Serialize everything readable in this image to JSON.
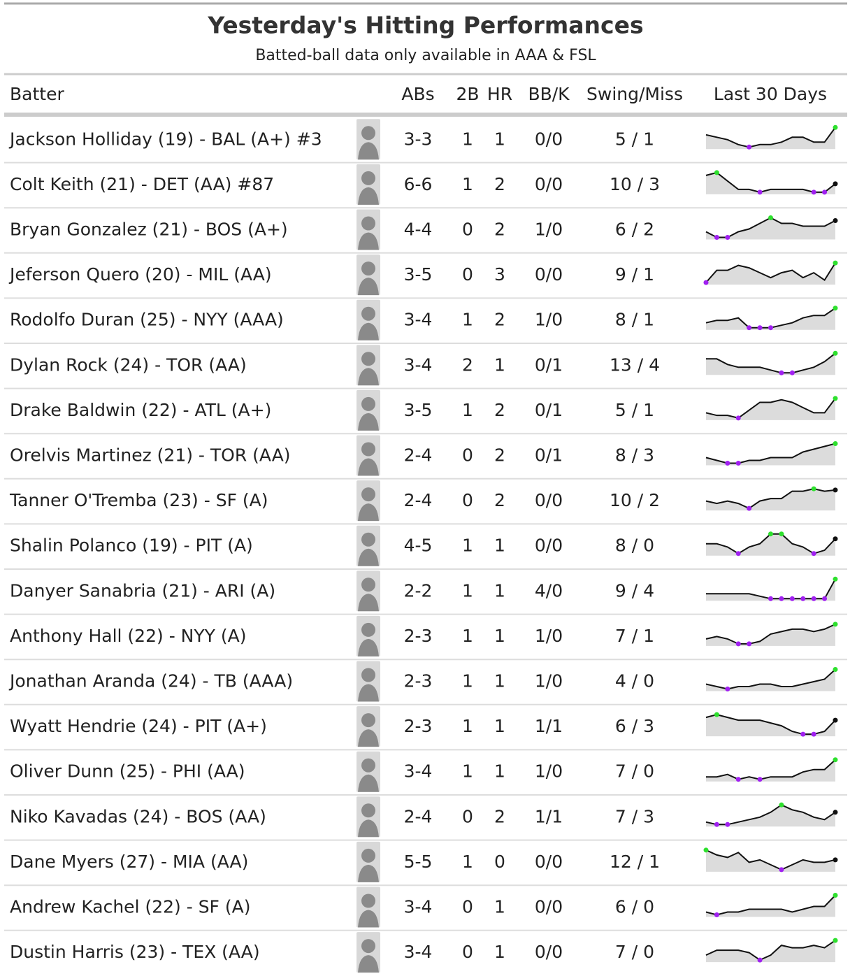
{
  "header": {
    "title": "Yesterday's Hitting Performances",
    "subtitle": "Batted-ball data only available in AAA & FSL"
  },
  "table": {
    "columns": [
      "Batter",
      "ABs",
      "2B",
      "HR",
      "BB/K",
      "Swing/Miss",
      "Last 30 Days"
    ],
    "rows": [
      [
        "Jackson Holliday (19) - BAL (A+) #3",
        "3-3",
        1,
        1,
        "0/0",
        "5 / 1"
      ],
      [
        "Colt Keith (21) - DET (AA) #87",
        "6-6",
        1,
        2,
        "0/0",
        "10 / 3"
      ],
      [
        "Bryan Gonzalez (21) - BOS (A+)",
        "4-4",
        0,
        2,
        "1/0",
        "6 / 2"
      ],
      [
        "Jeferson Quero (20) - MIL (AA)",
        "3-5",
        0,
        3,
        "0/0",
        "9 / 1"
      ],
      [
        "Rodolfo Duran (25) - NYY (AAA)",
        "3-4",
        1,
        2,
        "1/0",
        "8 / 1"
      ],
      [
        "Dylan Rock (24) - TOR (AA)",
        "3-4",
        2,
        1,
        "0/1",
        "13 / 4"
      ],
      [
        "Drake Baldwin (22) - ATL (A+)",
        "3-5",
        1,
        2,
        "0/1",
        "5 / 1"
      ],
      [
        "Orelvis Martinez (21) - TOR (AA)",
        "2-4",
        0,
        2,
        "0/1",
        "8 / 3"
      ],
      [
        "Tanner O'Tremba (23) - SF (A)",
        "2-4",
        0,
        2,
        "0/0",
        "10 / 2"
      ],
      [
        "Shalin Polanco (19) - PIT (A)",
        "4-5",
        1,
        1,
        "0/0",
        "8 / 0"
      ],
      [
        "Danyer Sanabria (21) - ARI (A)",
        "2-2",
        1,
        1,
        "4/0",
        "9 / 4"
      ],
      [
        "Anthony Hall (22) - NYY (A)",
        "2-3",
        1,
        1,
        "1/0",
        "7 / 1"
      ],
      [
        "Jonathan Aranda (24) - TB (AAA)",
        "2-3",
        1,
        1,
        "1/0",
        "4 / 0"
      ],
      [
        "Wyatt Hendrie (24) - PIT (A+)",
        "2-3",
        1,
        1,
        "1/1",
        "6 / 3"
      ],
      [
        "Oliver Dunn (25) - PHI (AA)",
        "3-4",
        1,
        1,
        "1/0",
        "7 / 0"
      ],
      [
        "Niko Kavadas (24) - BOS (AA)",
        "2-4",
        0,
        2,
        "1/1",
        "7 / 3"
      ],
      [
        "Dane Myers (27) - MIA (AA)",
        "5-5",
        1,
        0,
        "0/0",
        "12 / 1"
      ],
      [
        "Andrew Kachel (22) - SF (A)",
        "3-4",
        0,
        1,
        "0/0",
        "6 / 0"
      ],
      [
        "Dustin Harris (23) - TEX (AA)",
        "3-4",
        0,
        1,
        "0/0",
        "7 / 0"
      ]
    ],
    "sparklines": [
      [
        6,
        5,
        4,
        2,
        1,
        2,
        2,
        3,
        5,
        5,
        3,
        3,
        9
      ],
      [
        8,
        9,
        6,
        3,
        3,
        2,
        3,
        3,
        3,
        3,
        2,
        2,
        5
      ],
      [
        3,
        1,
        1,
        3,
        4,
        6,
        8,
        6,
        6,
        5,
        5,
        5,
        7
      ],
      [
        1,
        6,
        6,
        8,
        7,
        5,
        3,
        5,
        6,
        3,
        5,
        2,
        9
      ],
      [
        3,
        4,
        4,
        5,
        1,
        1,
        1,
        2,
        3,
        5,
        6,
        6,
        9
      ],
      [
        6,
        6,
        4,
        3,
        3,
        3,
        2,
        1,
        1,
        2,
        3,
        5,
        8
      ],
      [
        3,
        2,
        2,
        1,
        4,
        7,
        7,
        8,
        7,
        5,
        3,
        3,
        8.5
      ],
      [
        3,
        2,
        1,
        1,
        2,
        2,
        3,
        3,
        3,
        5,
        6,
        7,
        8
      ],
      [
        3,
        2,
        3,
        2,
        0,
        3,
        4,
        4,
        7,
        7,
        8,
        7,
        7.5
      ],
      [
        5,
        5,
        4,
        2,
        4,
        5,
        8,
        8,
        5,
        4,
        2,
        3,
        6.5
      ],
      [
        3,
        3,
        3,
        3,
        3,
        2,
        1,
        1,
        1,
        1,
        1,
        1,
        9
      ],
      [
        3,
        4,
        3,
        1,
        1,
        2,
        5,
        6,
        7,
        7,
        6,
        7,
        9
      ],
      [
        2,
        1,
        0,
        1,
        1,
        2,
        2,
        1,
        1,
        2,
        3,
        4,
        8
      ],
      [
        7,
        8,
        7,
        6,
        6,
        6,
        5,
        4,
        2,
        1,
        1,
        2,
        6
      ],
      [
        2,
        2,
        3,
        1,
        2,
        1,
        2,
        2,
        2,
        4,
        5,
        5,
        9
      ],
      [
        2,
        1,
        1,
        2,
        3,
        4,
        6,
        9,
        7,
        6,
        4,
        3,
        6
      ],
      [
        9,
        7,
        6,
        8,
        4,
        5,
        3,
        1,
        3,
        5,
        4,
        4,
        5
      ],
      [
        2,
        1,
        2,
        2,
        3,
        3,
        3,
        3,
        2,
        3,
        4,
        4,
        8
      ],
      [
        2,
        4,
        4,
        4,
        3,
        0,
        2,
        6,
        5,
        5,
        6,
        5,
        8
      ]
    ]
  }
}
